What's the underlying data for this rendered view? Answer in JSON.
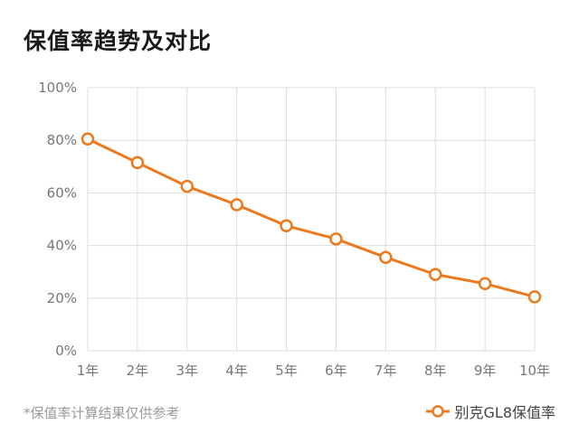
{
  "title": "保值率趋势及对比",
  "footnote": "*保值率计算结果仅供参考",
  "colors": {
    "series": "#EB7A1E",
    "grid": "#DDDDDD",
    "axis_text": "#777777",
    "title": "#1A1A1A"
  },
  "chart_data": {
    "type": "line",
    "x": [
      "1年",
      "2年",
      "3年",
      "4年",
      "5年",
      "6年",
      "7年",
      "8年",
      "9年",
      "10年"
    ],
    "series": [
      {
        "name": "别克GL8保值率",
        "values": [
          80.5,
          71.5,
          62.5,
          55.5,
          47.5,
          42.5,
          35.5,
          29.0,
          25.5,
          20.5
        ]
      }
    ],
    "ylim": [
      0,
      100
    ],
    "yticks": [
      "0%",
      "20%",
      "40%",
      "60%",
      "80%",
      "100%"
    ],
    "grid": true,
    "legend": "bottom-right",
    "title": "保值率趋势及对比",
    "xlabel": "",
    "ylabel": ""
  }
}
